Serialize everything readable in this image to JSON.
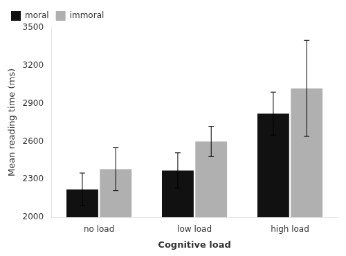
{
  "chart_data": {
    "type": "bar",
    "xlabel": "Cognitive load",
    "ylabel": "Mean reading time (ms)",
    "categories": [
      "no load",
      "low load",
      "high load"
    ],
    "series": [
      {
        "name": "moral",
        "color": "#111111",
        "values": [
          2220,
          2370,
          2820
        ],
        "errors": [
          130,
          140,
          170
        ]
      },
      {
        "name": "immoral",
        "color": "#b0b0b0",
        "values": [
          2380,
          2600,
          3020
        ],
        "errors": [
          170,
          120,
          380
        ]
      }
    ],
    "ylim": [
      2000,
      3500
    ],
    "yticks": [
      2000,
      2300,
      2600,
      2900,
      3200,
      3500
    ],
    "grid": false,
    "legend": "upper left"
  }
}
